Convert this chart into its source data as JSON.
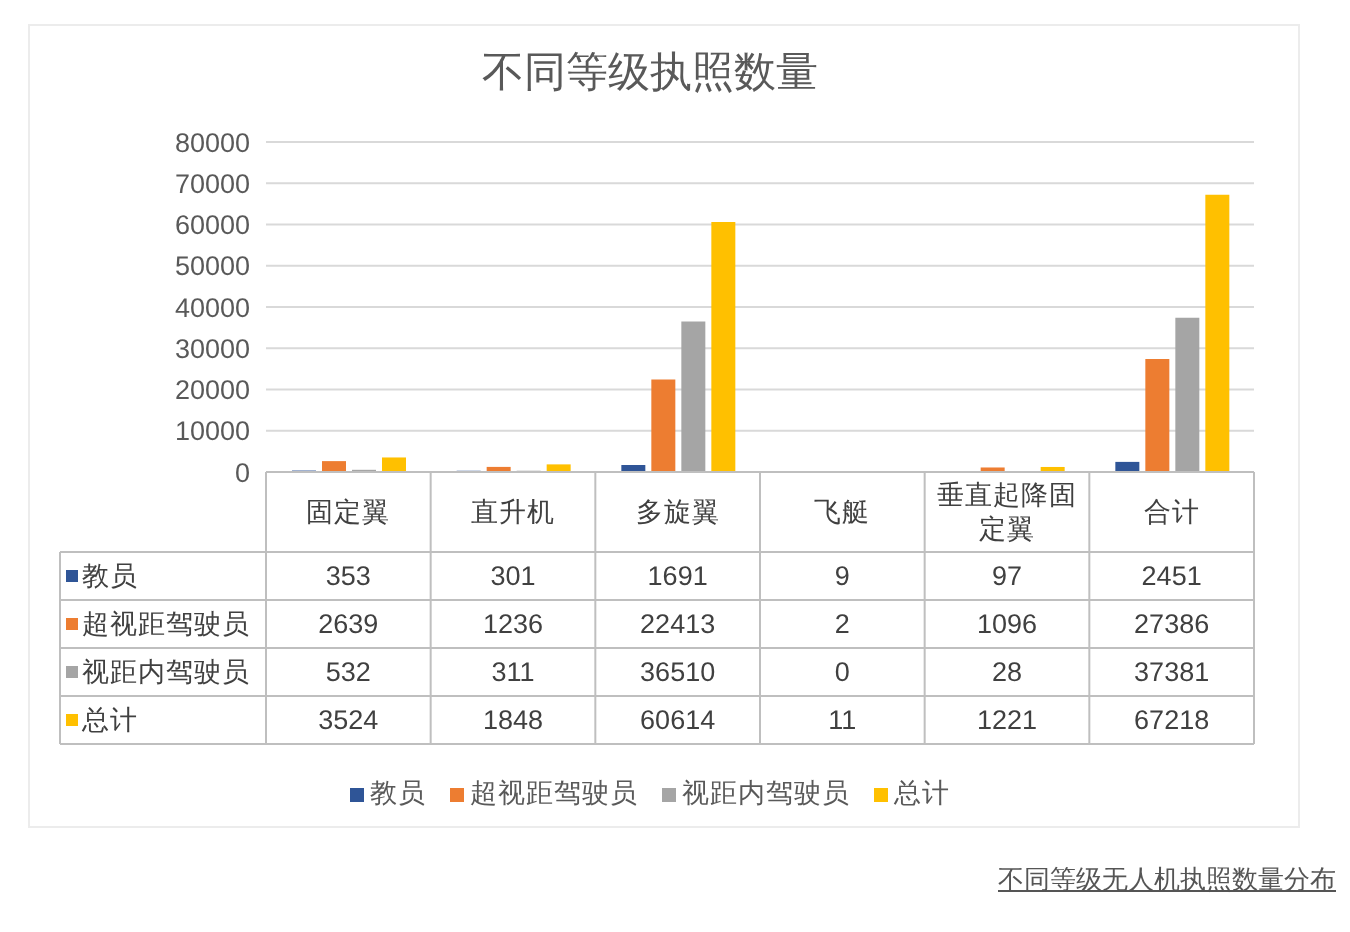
{
  "chart_data": {
    "type": "bar",
    "title": "不同等级执照数量",
    "categories": [
      "固定翼",
      "直升机",
      "多旋翼",
      "飞艇",
      "垂直起降固定翼",
      "合计"
    ],
    "series": [
      {
        "name": "教员",
        "color": "#2f5597",
        "values": [
          353,
          301,
          1691,
          9,
          97,
          2451
        ]
      },
      {
        "name": "超视距驾驶员",
        "color": "#ed7d31",
        "values": [
          2639,
          1236,
          22413,
          2,
          1096,
          27386
        ]
      },
      {
        "name": "视距内驾驶员",
        "color": "#a5a5a5",
        "values": [
          532,
          311,
          36510,
          0,
          28,
          37381
        ]
      },
      {
        "name": "总计",
        "color": "#ffc000",
        "values": [
          3524,
          1848,
          60614,
          11,
          1221,
          67218
        ]
      }
    ],
    "ylim": [
      0,
      80000
    ],
    "yticks": [
      0,
      10000,
      20000,
      30000,
      40000,
      50000,
      60000,
      70000,
      80000
    ],
    "grid": "y",
    "legend": "bottom",
    "data_labels": true,
    "annotations": [
      "不同等级无人机执照数量分布"
    ]
  }
}
